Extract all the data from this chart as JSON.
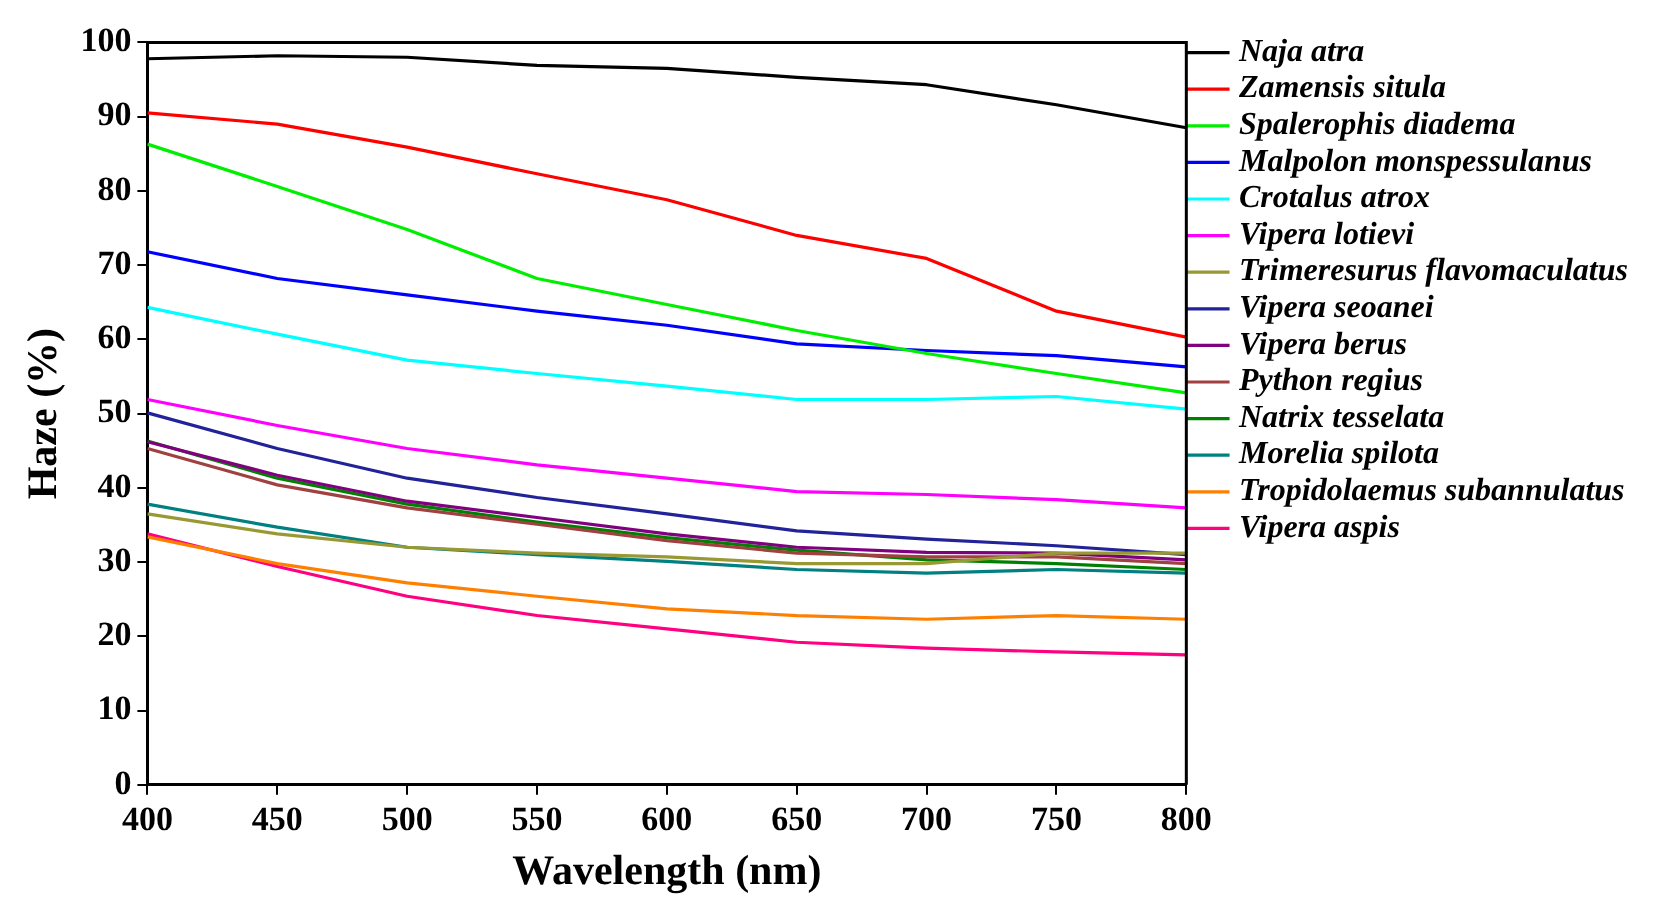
{
  "chart_data": {
    "type": "line",
    "xlabel": "Wavelength (nm)",
    "ylabel": "Haze (%)",
    "x": [
      400,
      450,
      500,
      550,
      600,
      650,
      700,
      750,
      800
    ],
    "xlim": [
      400,
      800
    ],
    "xticks": [
      400,
      450,
      500,
      550,
      600,
      650,
      700,
      750,
      800
    ],
    "ylim": [
      0,
      100
    ],
    "yticks": [
      0,
      10,
      20,
      30,
      40,
      50,
      60,
      70,
      80,
      90,
      100
    ],
    "grid": false,
    "legend": "right",
    "marker": "none",
    "line_style": "solid",
    "series": [
      {
        "name": "Naja atra",
        "color": "#000000",
        "values": [
          97.8,
          98.2,
          98,
          96.9,
          96.5,
          95.3,
          94.3,
          91.6,
          88.5
        ]
      },
      {
        "name": "Zamensis situla",
        "color": "#ff0000",
        "values": [
          90.5,
          89,
          85.9,
          82.3,
          78.8,
          74,
          70.9,
          63.8,
          60.3
        ]
      },
      {
        "name": "Spalerophis diadema",
        "color": "#00ee00",
        "values": [
          86.3,
          80.6,
          74.8,
          68.2,
          64.7,
          61.2,
          58.1,
          55.4,
          52.8
        ]
      },
      {
        "name": "Malpolon monspessulanus",
        "color": "#0000ff",
        "values": [
          71.8,
          68.2,
          66,
          63.8,
          61.9,
          59.4,
          58.5,
          57.8,
          56.3
        ]
      },
      {
        "name": "Crotalus atrox",
        "color": "#00ffff",
        "values": [
          64.3,
          60.7,
          57.2,
          55.4,
          53.7,
          51.9,
          51.9,
          52.3,
          50.6
        ]
      },
      {
        "name": "Vipera lotievi",
        "color": "#ff00ff",
        "values": [
          51.9,
          48.4,
          45.3,
          43.1,
          41.3,
          39.5,
          39.1,
          38.4,
          37.3
        ]
      },
      {
        "name": "Trimeresurus flavomaculatus",
        "color": "#999933",
        "values": [
          36.5,
          33.8,
          32,
          31.2,
          30.7,
          29.8,
          29.8,
          31.2,
          31.2
        ]
      },
      {
        "name": "Vipera seoanei",
        "color": "#222299",
        "values": [
          50.1,
          45.3,
          41.3,
          38.7,
          36.5,
          34.2,
          33.1,
          32.2,
          31
        ]
      },
      {
        "name": "Vipera berus",
        "color": "#800080",
        "values": [
          46.2,
          41.7,
          38.2,
          36,
          33.8,
          32,
          31.3,
          31.2,
          30.3
        ]
      },
      {
        "name": "Python regius",
        "color": "#a04040",
        "values": [
          45.3,
          40.4,
          37.3,
          35.1,
          32.9,
          31.2,
          30.7,
          30.7,
          29.8
        ]
      },
      {
        "name": "Natrix tesselata",
        "color": "#008000",
        "values": [
          46.3,
          41.3,
          37.8,
          35.4,
          33.3,
          31.6,
          30.3,
          29.8,
          29
        ]
      },
      {
        "name": "Morelia spilota",
        "color": "#008080",
        "values": [
          37.8,
          34.7,
          32,
          31,
          30.1,
          29,
          28.5,
          29,
          28.5
        ]
      },
      {
        "name": "Tropidolaemus subannulatus",
        "color": "#ff8000",
        "values": [
          33.4,
          29.8,
          27.2,
          25.4,
          23.7,
          22.8,
          22.3,
          22.8,
          22.3
        ]
      },
      {
        "name": "Vipera aspis",
        "color": "#ff0080",
        "values": [
          33.8,
          29.4,
          25.4,
          22.8,
          21,
          19.2,
          18.4,
          17.9,
          17.5
        ]
      }
    ]
  }
}
